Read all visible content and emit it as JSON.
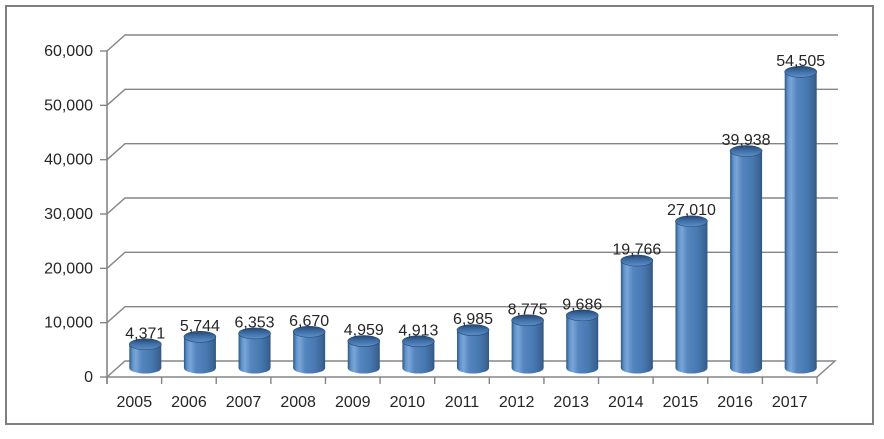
{
  "chart_data": {
    "type": "bar",
    "subtype": "3d-cylinder",
    "title": "",
    "xlabel": "",
    "ylabel": "",
    "categories": [
      "2005",
      "2006",
      "2007",
      "2008",
      "2009",
      "2010",
      "2011",
      "2012",
      "2013",
      "2014",
      "2015",
      "2016",
      "2017"
    ],
    "values": [
      4371,
      5744,
      6353,
      6670,
      4959,
      4913,
      6985,
      8775,
      9686,
      19766,
      27010,
      39938,
      54505
    ],
    "data_labels": [
      "4,371",
      "5,744",
      "6,353",
      "6,670",
      "4,959",
      "4,913",
      "6,985",
      "8,775",
      "9,686",
      "19,766",
      "27,010",
      "39,938",
      "54,505"
    ],
    "y_ticks": [
      "0",
      "10,000",
      "20,000",
      "30,000",
      "40,000",
      "50,000",
      "60,000"
    ],
    "y_tick_values": [
      0,
      10000,
      20000,
      30000,
      40000,
      50000,
      60000
    ],
    "ylim": [
      0,
      60000
    ],
    "grid": true,
    "legend": false
  },
  "colors": {
    "background": "#ffffff",
    "border": "#7f7f7f",
    "gridline": "#858585",
    "axis": "#858585",
    "text": "#262626",
    "bar_fill": "#4f81bd",
    "bar_highlight": "#79a6d8",
    "bar_shadow": "#2e5680",
    "bar_top_dark": "#24466e",
    "bar_top_light": "#5e8fc7"
  }
}
